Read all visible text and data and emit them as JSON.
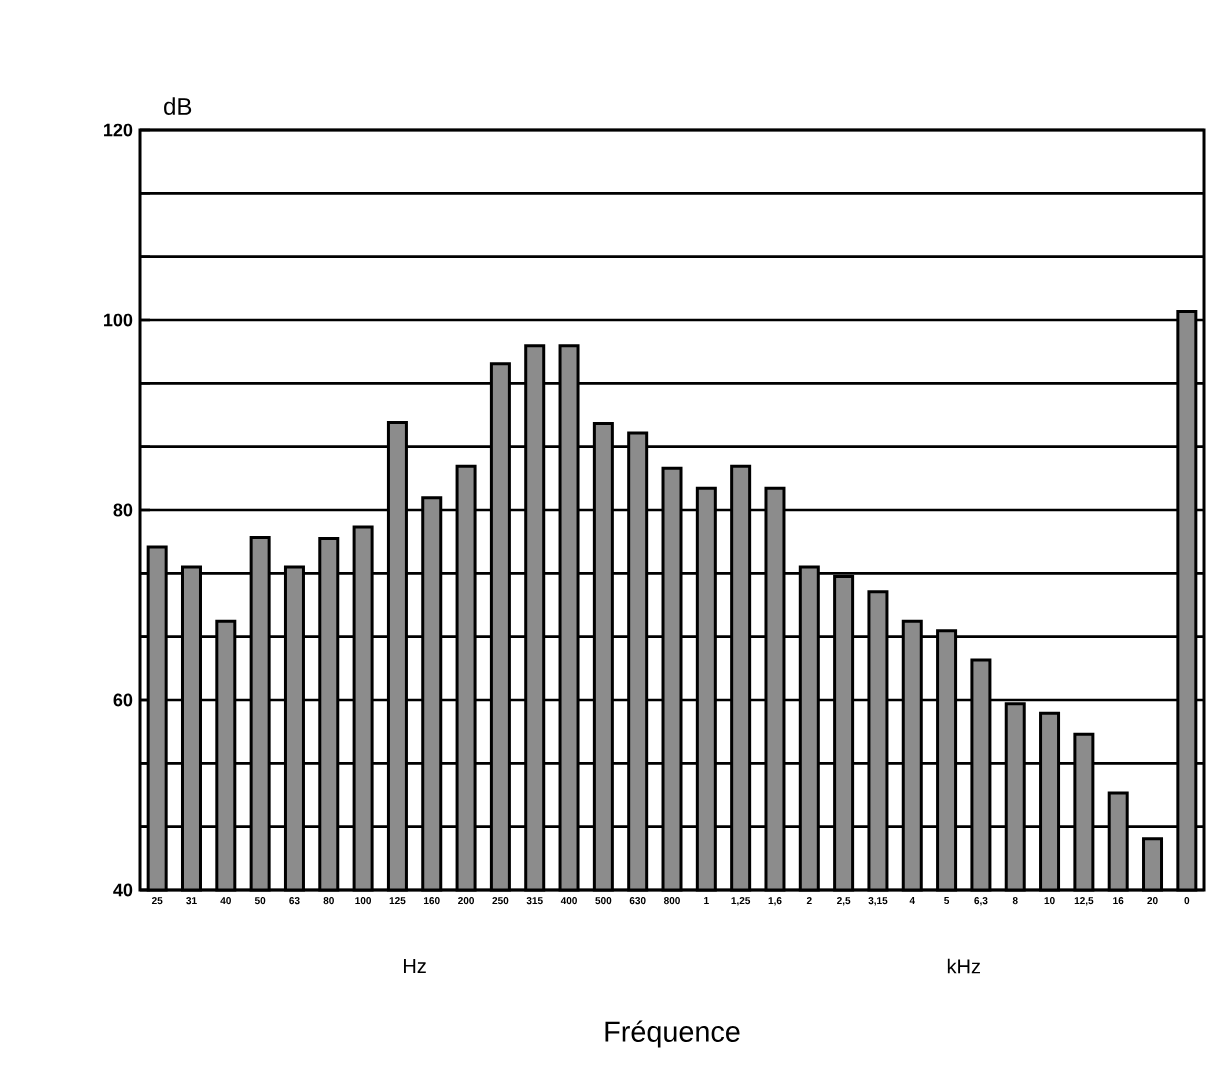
{
  "chart_data": {
    "type": "bar",
    "ylabel": "dB",
    "xlabel": "Fréquence",
    "annotations": [
      "Hz",
      "kHz"
    ],
    "categories": [
      "25",
      "31",
      "40",
      "50",
      "63",
      "80",
      "100",
      "125",
      "160",
      "200",
      "250",
      "315",
      "400",
      "500",
      "630",
      "800",
      "1",
      "1,25",
      "1,6",
      "2",
      "2,5",
      "3,15",
      "4",
      "5",
      "6,3",
      "8",
      "10",
      "12,5",
      "16",
      "20",
      "0"
    ],
    "values": [
      76.1,
      74,
      68.3,
      77.1,
      74,
      77,
      78.2,
      89.2,
      81.3,
      84.6,
      95.4,
      97.3,
      97.3,
      89.1,
      88.1,
      84.4,
      82.3,
      84.6,
      82.3,
      74,
      73,
      71.4,
      68.3,
      67.3,
      64.2,
      59.6,
      58.6,
      56.4,
      50.2,
      45.4,
      100.9
    ],
    "color": "#8c8c8c",
    "ylim": [
      40,
      120
    ],
    "yticks": [
      40,
      {
        "value": 46.67,
        "label": null
      },
      {
        "value": 53.33,
        "label": null
      },
      60,
      {
        "value": 66.67,
        "label": null
      },
      {
        "value": 73.33,
        "label": null
      },
      80,
      {
        "value": 86.67,
        "label": null
      },
      {
        "value": 93.33,
        "label": null
      },
      100,
      {
        "value": 106.67,
        "label": null
      },
      {
        "value": 113.33,
        "label": null
      },
      120
    ],
    "grid": "y"
  }
}
